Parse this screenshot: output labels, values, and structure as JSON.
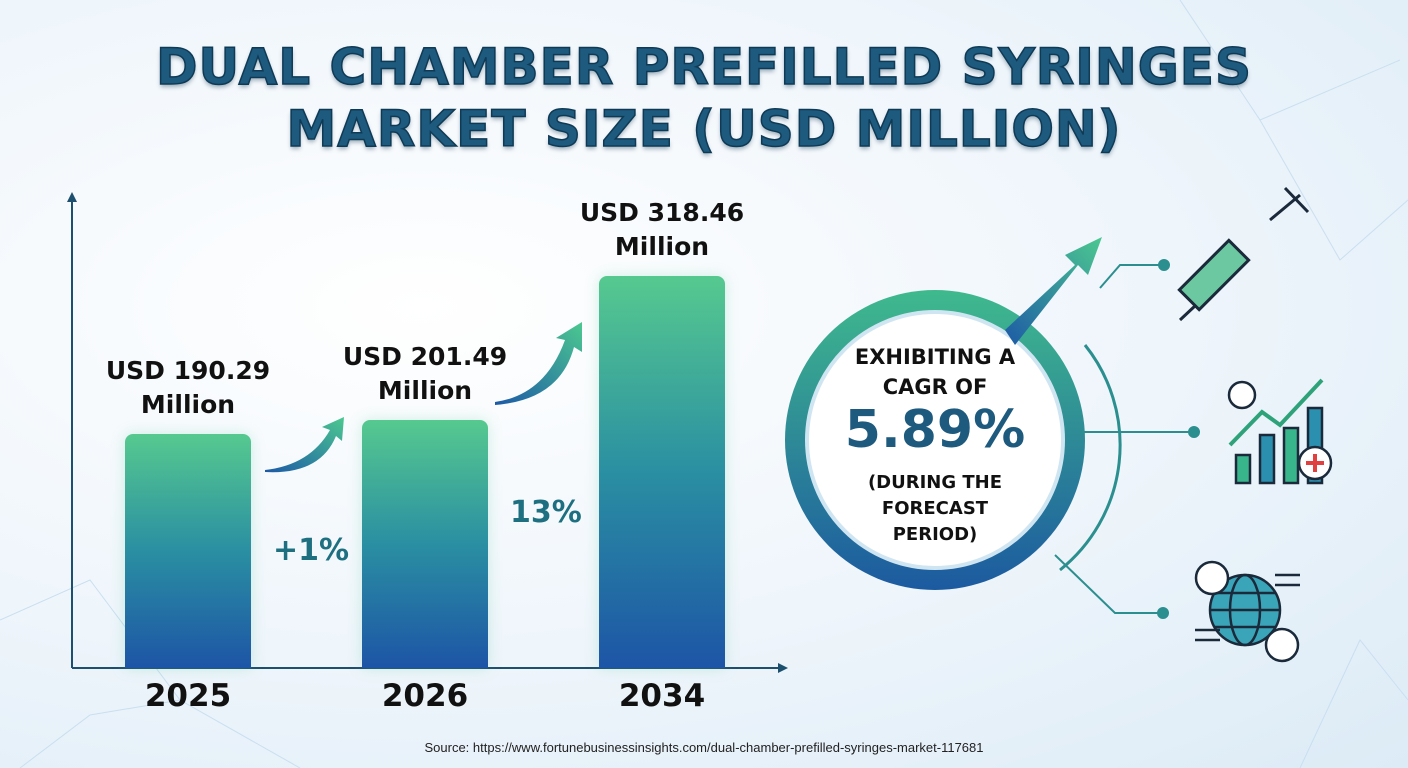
{
  "chart_data": {
    "type": "bar",
    "title": "DUAL CHAMBER PREFILLED SYRINGES MARKET SIZE (USD MILLION)",
    "categories": [
      "2025",
      "2026",
      "2034"
    ],
    "values": [
      190.29,
      201.49,
      318.46
    ],
    "value_labels": [
      "USD 190.29 Million",
      "USD 201.49 Million",
      "USD 318.46 Million"
    ],
    "annotations": [
      "+1%",
      "13%"
    ],
    "cagr": {
      "lead": "EXHIBITING A CAGR OF",
      "value": "5.89%",
      "note": "(DURING THE FORECAST PERIOD)"
    },
    "source": "Source: https://www.fortunebusinessinsights.com/dual-chamber-prefilled-syringes-market-117681"
  }
}
